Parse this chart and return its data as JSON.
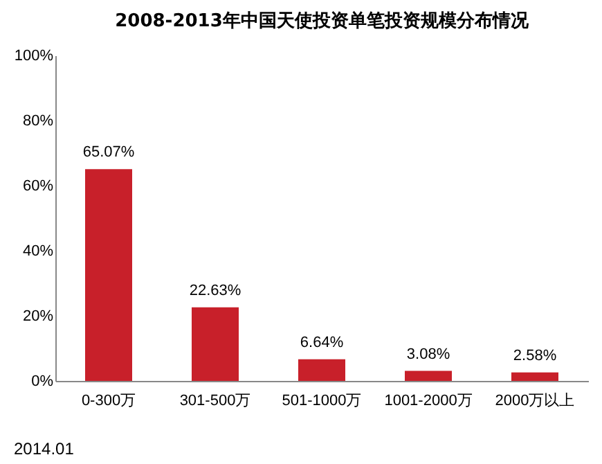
{
  "chart_data": {
    "type": "bar",
    "title": "2008-2013年中国天使投资单笔投资规模分布情况",
    "categories": [
      "0-300万",
      "301-500万",
      "501-1000万",
      "1001-2000万",
      "2000万以上"
    ],
    "values": [
      65.07,
      22.63,
      6.64,
      3.08,
      2.58
    ],
    "value_labels": [
      "65.07%",
      "22.63%",
      "6.64%",
      "3.08%",
      "2.58%"
    ],
    "color": "#c8202a",
    "ylim": [
      0,
      100
    ],
    "yticks": [
      {
        "value": 0,
        "label": "0%"
      },
      {
        "value": 20,
        "label": "20%"
      },
      {
        "value": 40,
        "label": "40%"
      },
      {
        "value": 60,
        "label": "60%"
      },
      {
        "value": 80,
        "label": "80%"
      },
      {
        "value": 100,
        "label": "100%"
      }
    ],
    "annotations": [
      "2014.01"
    ]
  }
}
